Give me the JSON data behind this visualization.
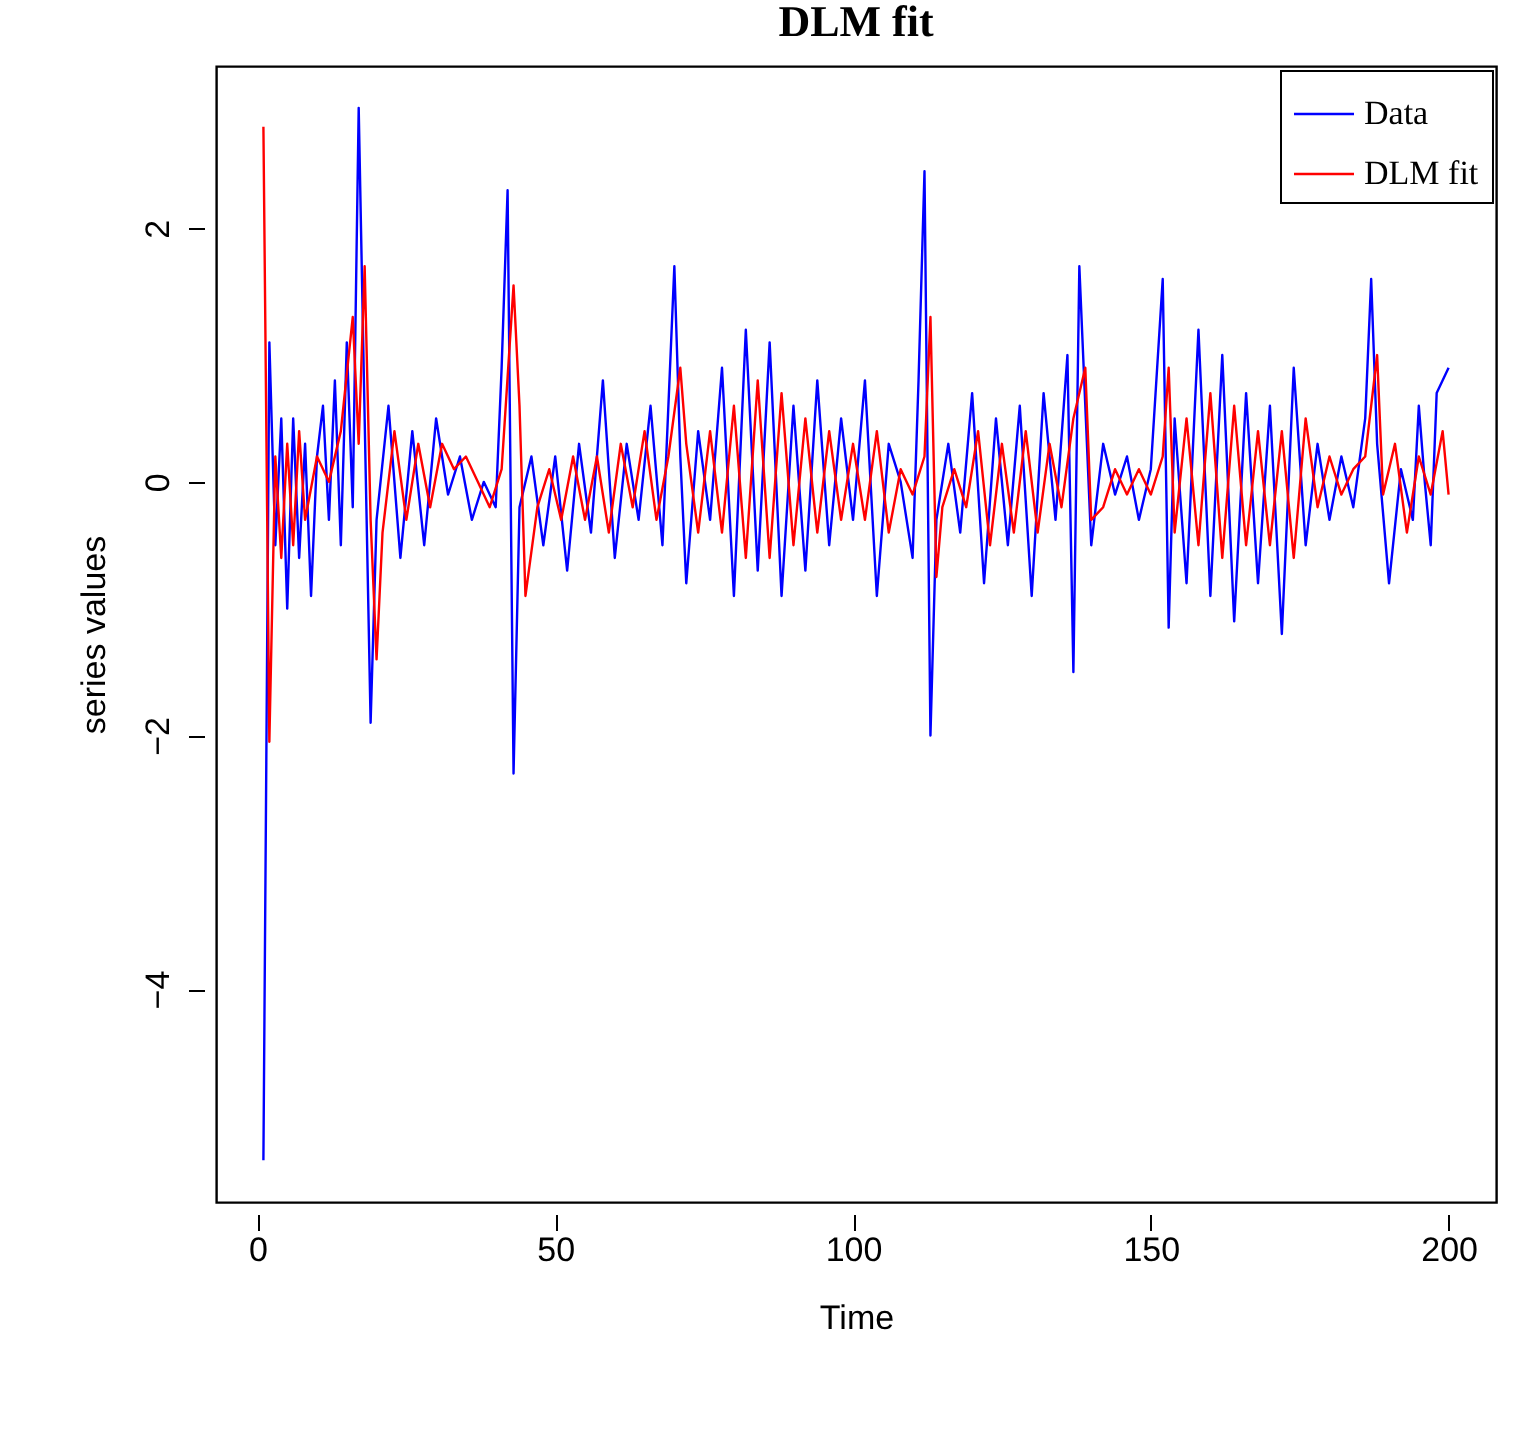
{
  "chart_data": {
    "type": "line",
    "title": "DLM fit",
    "xlabel": "Time",
    "ylabel": "series values",
    "xlim": [
      -6.96,
      207.96
    ],
    "ylim": [
      -5.68,
      3.28
    ],
    "xticks": [
      0,
      50,
      100,
      150,
      200
    ],
    "yticks": [
      -4,
      -2,
      0,
      2
    ],
    "grid": false,
    "legend": "top right",
    "line_style": "solid",
    "marker": "none",
    "series": [
      {
        "name": "Data",
        "color": "#0000ff",
        "x": [
          1,
          2,
          3,
          4,
          5,
          6,
          7,
          8,
          9,
          10,
          11,
          12,
          13,
          14,
          15,
          16,
          17,
          18,
          19,
          20,
          22,
          24,
          26,
          28,
          30,
          32,
          34,
          36,
          38,
          40,
          41,
          42,
          43,
          44,
          46,
          48,
          50,
          52,
          54,
          56,
          58,
          60,
          62,
          64,
          66,
          68,
          70,
          71,
          72,
          74,
          76,
          78,
          80,
          82,
          84,
          86,
          88,
          90,
          92,
          94,
          96,
          98,
          100,
          102,
          104,
          106,
          108,
          110,
          111,
          112,
          113,
          114,
          116,
          118,
          120,
          122,
          124,
          126,
          128,
          130,
          132,
          134,
          136,
          137,
          138,
          140,
          142,
          144,
          146,
          148,
          150,
          152,
          153,
          154,
          156,
          158,
          160,
          162,
          164,
          166,
          168,
          170,
          172,
          174,
          176,
          178,
          180,
          182,
          184,
          186,
          187,
          188,
          190,
          192,
          194,
          195,
          196,
          197,
          198,
          200
        ],
        "values": [
          -5.35,
          1.1,
          -0.5,
          0.5,
          -1.0,
          0.5,
          -0.6,
          0.3,
          -0.9,
          0.2,
          0.6,
          -0.3,
          0.8,
          -0.5,
          1.1,
          -0.2,
          2.95,
          0.5,
          -1.9,
          -0.3,
          0.6,
          -0.6,
          0.4,
          -0.5,
          0.5,
          -0.1,
          0.2,
          -0.3,
          0.0,
          -0.2,
          0.9,
          2.3,
          -2.3,
          -0.2,
          0.2,
          -0.5,
          0.2,
          -0.7,
          0.3,
          -0.4,
          0.8,
          -0.6,
          0.3,
          -0.3,
          0.6,
          -0.5,
          1.7,
          0.2,
          -0.8,
          0.4,
          -0.3,
          0.9,
          -0.9,
          1.2,
          -0.7,
          1.1,
          -0.9,
          0.6,
          -0.7,
          0.8,
          -0.5,
          0.5,
          -0.3,
          0.8,
          -0.9,
          0.3,
          0.0,
          -0.6,
          0.8,
          2.45,
          -2.0,
          -0.3,
          0.3,
          -0.4,
          0.7,
          -0.8,
          0.5,
          -0.5,
          0.6,
          -0.9,
          0.7,
          -0.3,
          1.0,
          -1.5,
          1.7,
          -0.5,
          0.3,
          -0.1,
          0.2,
          -0.3,
          0.1,
          1.6,
          -1.15,
          0.5,
          -0.8,
          1.2,
          -0.9,
          1.0,
          -1.1,
          0.7,
          -0.8,
          0.6,
          -1.2,
          0.9,
          -0.5,
          0.3,
          -0.3,
          0.2,
          -0.2,
          0.5,
          1.6,
          0.3,
          -0.8,
          0.1,
          -0.3,
          0.6,
          0.0,
          -0.5,
          0.7,
          0.9
        ]
      },
      {
        "name": "DLM fit",
        "color": "#ff0000",
        "x": [
          1,
          2,
          3,
          4,
          5,
          6,
          7,
          8,
          10,
          12,
          14,
          16,
          17,
          18,
          19,
          20,
          21,
          23,
          25,
          27,
          29,
          31,
          33,
          35,
          37,
          39,
          41,
          43,
          44,
          45,
          47,
          49,
          51,
          53,
          55,
          57,
          59,
          61,
          63,
          65,
          67,
          69,
          71,
          72,
          74,
          76,
          78,
          80,
          82,
          84,
          86,
          88,
          90,
          92,
          94,
          96,
          98,
          100,
          102,
          104,
          106,
          108,
          110,
          112,
          113,
          114,
          115,
          117,
          119,
          121,
          123,
          125,
          127,
          129,
          131,
          133,
          135,
          137,
          139,
          140,
          142,
          144,
          146,
          148,
          150,
          152,
          153,
          154,
          156,
          158,
          160,
          162,
          164,
          166,
          168,
          170,
          172,
          174,
          176,
          178,
          180,
          182,
          184,
          186,
          188,
          189,
          191,
          193,
          195,
          197,
          199,
          200
        ],
        "values": [
          2.8,
          -2.05,
          0.2,
          -0.6,
          0.3,
          -0.5,
          0.4,
          -0.3,
          0.2,
          0.0,
          0.4,
          1.3,
          0.3,
          1.7,
          -0.3,
          -1.4,
          -0.4,
          0.4,
          -0.3,
          0.3,
          -0.2,
          0.3,
          0.1,
          0.2,
          0.0,
          -0.2,
          0.1,
          1.55,
          0.6,
          -0.9,
          -0.2,
          0.1,
          -0.3,
          0.2,
          -0.3,
          0.2,
          -0.4,
          0.3,
          -0.2,
          0.4,
          -0.3,
          0.2,
          0.9,
          0.3,
          -0.4,
          0.4,
          -0.4,
          0.6,
          -0.6,
          0.8,
          -0.6,
          0.7,
          -0.5,
          0.5,
          -0.4,
          0.4,
          -0.3,
          0.3,
          -0.3,
          0.4,
          -0.4,
          0.1,
          -0.1,
          0.2,
          1.3,
          -0.75,
          -0.2,
          0.1,
          -0.2,
          0.4,
          -0.5,
          0.3,
          -0.4,
          0.4,
          -0.4,
          0.3,
          -0.2,
          0.5,
          0.9,
          -0.3,
          -0.2,
          0.1,
          -0.1,
          0.1,
          -0.1,
          0.2,
          0.9,
          -0.4,
          0.5,
          -0.5,
          0.7,
          -0.6,
          0.6,
          -0.5,
          0.4,
          -0.5,
          0.4,
          -0.6,
          0.5,
          -0.2,
          0.2,
          -0.1,
          0.1,
          0.2,
          1.0,
          -0.1,
          0.3,
          -0.4,
          0.2,
          -0.1,
          0.4,
          -0.1
        ]
      }
    ]
  }
}
